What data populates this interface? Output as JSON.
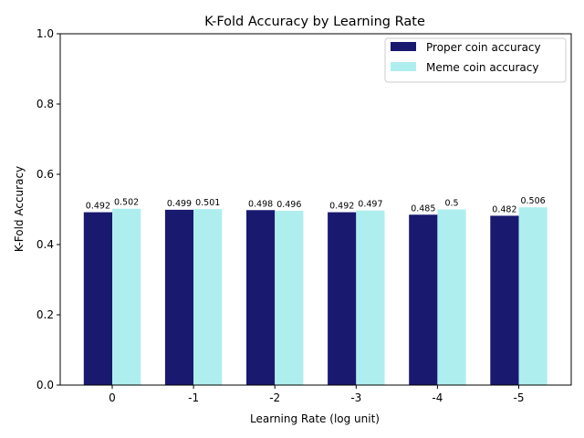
{
  "chart_data": {
    "type": "bar",
    "title": "K-Fold Accuracy by Learning Rate",
    "xlabel": "Learning Rate (log unit)",
    "ylabel": "K-Fold Accuracy",
    "categories": [
      "0",
      "-1",
      "-2",
      "-3",
      "-4",
      "-5"
    ],
    "ylim": [
      0,
      1.0
    ],
    "yticks": [
      "0.0",
      "0.2",
      "0.4",
      "0.6",
      "0.8",
      "1.0"
    ],
    "series": [
      {
        "name": "Proper coin accuracy",
        "color": "#191970",
        "values": [
          0.492,
          0.499,
          0.498,
          0.492,
          0.485,
          0.482
        ],
        "labels": [
          "0.492",
          "0.499",
          "0.498",
          "0.492",
          "0.485",
          "0.482"
        ]
      },
      {
        "name": "Meme coin accuracy",
        "color": "#afeeee",
        "values": [
          0.502,
          0.501,
          0.496,
          0.497,
          0.5,
          0.506
        ],
        "labels": [
          "0.502",
          "0.501",
          "0.496",
          "0.497",
          "0.5",
          "0.506"
        ]
      }
    ],
    "legend": "top-right",
    "grid": false
  }
}
